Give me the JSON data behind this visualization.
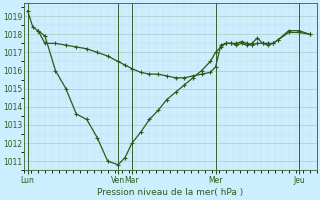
{
  "xlabel": "Pression niveau de la mer( hPa )",
  "bg_color": "#cceeff",
  "line_color": "#2d5a1b",
  "grid_major_color": "#b0c8c8",
  "grid_minor_color": "#c8dede",
  "ylim": [
    1010.5,
    1019.7
  ],
  "yticks": [
    1011,
    1012,
    1013,
    1014,
    1015,
    1016,
    1017,
    1018,
    1019
  ],
  "xlim": [
    0,
    336
  ],
  "day_positions": [
    4,
    108,
    124,
    220,
    316
  ],
  "day_labels": [
    "Lun",
    "Ven",
    "Mar",
    "Mer",
    "Jeu"
  ],
  "vline_positions": [
    4,
    108,
    124,
    220,
    316
  ],
  "line1_x": [
    4,
    10,
    16,
    24,
    36,
    48,
    60,
    72,
    84,
    96,
    108,
    116,
    124,
    134,
    144,
    154,
    164,
    174,
    184,
    194,
    204,
    214,
    220,
    226,
    232,
    238,
    244,
    250,
    256,
    262,
    268,
    274,
    280,
    286,
    292,
    304,
    316,
    328
  ],
  "line1_y": [
    1019.3,
    1018.4,
    1018.2,
    1017.9,
    1016.0,
    1015.0,
    1013.6,
    1013.3,
    1012.3,
    1011.0,
    1010.8,
    1011.2,
    1012.0,
    1012.6,
    1013.3,
    1013.8,
    1014.4,
    1014.8,
    1015.2,
    1015.6,
    1016.0,
    1016.5,
    1017.0,
    1017.3,
    1017.5,
    1017.5,
    1017.4,
    1017.5,
    1017.4,
    1017.5,
    1017.8,
    1017.5,
    1017.4,
    1017.5,
    1017.7,
    1018.2,
    1018.2,
    1018.0
  ],
  "line2_x": [
    16,
    24,
    36,
    48,
    60,
    72,
    84,
    96,
    108,
    116,
    124,
    134,
    144,
    154,
    164,
    174,
    184,
    194,
    204,
    214,
    220,
    226,
    232,
    238,
    244,
    250,
    256,
    262,
    268,
    274,
    280,
    286,
    292,
    304,
    316,
    328
  ],
  "line2_y": [
    1018.2,
    1017.5,
    1017.5,
    1017.4,
    1017.3,
    1017.2,
    1017.0,
    1016.8,
    1016.5,
    1016.3,
    1016.1,
    1015.9,
    1015.8,
    1015.8,
    1015.7,
    1015.6,
    1015.6,
    1015.7,
    1015.8,
    1015.9,
    1016.2,
    1017.4,
    1017.5,
    1017.5,
    1017.5,
    1017.6,
    1017.5,
    1017.4,
    1017.5,
    1017.5,
    1017.5,
    1017.5,
    1017.7,
    1018.1,
    1018.1,
    1018.0
  ]
}
